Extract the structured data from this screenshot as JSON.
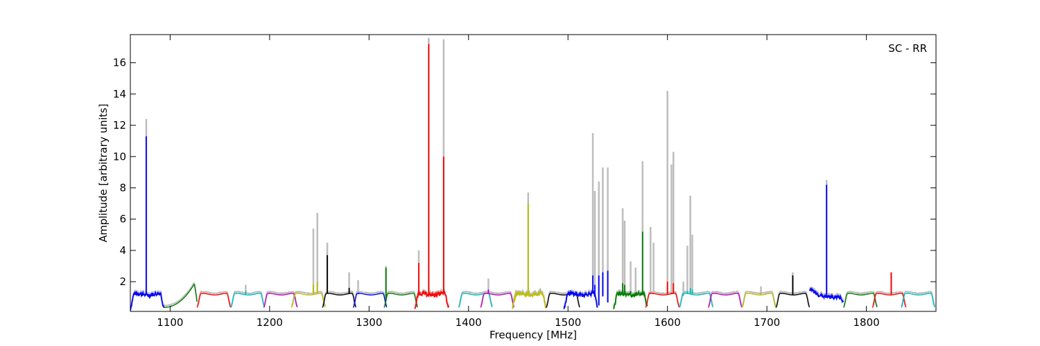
{
  "chart_data": {
    "type": "line",
    "title": "",
    "annotation": "SC - RR",
    "xlabel": "Frequency [MHz]",
    "ylabel": "Amplitude [arbitrary units]",
    "xlim": [
      1060,
      1870
    ],
    "ylim": [
      0.1,
      17.8
    ],
    "xticks": [
      1100,
      1200,
      1300,
      1400,
      1500,
      1600,
      1700,
      1800
    ],
    "yticks": [
      2,
      4,
      6,
      8,
      10,
      12,
      14,
      16
    ],
    "xtick_labels": [
      "1100",
      "1200",
      "1300",
      "1400",
      "1500",
      "1600",
      "1700",
      "1800"
    ],
    "ytick_labels": [
      "2",
      "4",
      "6",
      "8",
      "10",
      "12",
      "14",
      "16"
    ],
    "grid": false,
    "legend": "none",
    "background_trace_color": "#bdbdbd",
    "band_width": 34,
    "bands": [
      {
        "start": 1060,
        "color": "#0000ff",
        "spikes": [
          [
            1076,
            11.3,
            12.4
          ]
        ],
        "noise": true
      },
      {
        "start": 1093,
        "color": "#007f00",
        "spikes": [],
        "shape": "rising"
      },
      {
        "start": 1127,
        "color": "#ff0000",
        "spikes": []
      },
      {
        "start": 1161,
        "color": "#00bfbf",
        "spikes": [
          [
            1176,
            1.4,
            1.8
          ]
        ]
      },
      {
        "start": 1194,
        "color": "#bf00bf",
        "spikes": []
      },
      {
        "start": 1222,
        "color": "#bfbf00",
        "spikes": [
          [
            1244,
            1.8,
            5.4
          ],
          [
            1248,
            2.0,
            6.4
          ]
        ]
      },
      {
        "start": 1253,
        "color": "#000000",
        "spikes": [
          [
            1258,
            3.7,
            4.5
          ],
          [
            1280,
            1.6,
            2.6
          ]
        ]
      },
      {
        "start": 1284,
        "color": "#0000ff",
        "spikes": [
          [
            1289,
            1.2,
            2.1
          ]
        ]
      },
      {
        "start": 1315,
        "color": "#007f00",
        "spikes": [
          [
            1317,
            2.9,
            3.0
          ]
        ]
      },
      {
        "start": 1346,
        "color": "#ff0000",
        "spikes": [
          [
            1350,
            3.2,
            4.0
          ],
          [
            1360,
            17.2,
            17.6
          ],
          [
            1375,
            10.0,
            17.5
          ]
        ],
        "noise": true
      },
      {
        "start": 1390,
        "color": "#00bfbf",
        "spikes": []
      },
      {
        "start": 1412,
        "color": "#bf00bf",
        "spikes": [
          [
            1420,
            1.5,
            2.2
          ]
        ]
      },
      {
        "start": 1444,
        "color": "#bfbf00",
        "spikes": [
          [
            1460,
            7.0,
            7.7
          ]
        ],
        "noise": true
      },
      {
        "start": 1478,
        "color": "#000000",
        "spikes": []
      },
      {
        "start": 1496,
        "color": "#0000ff",
        "spikes": [
          [
            1525,
            2.4,
            11.5
          ],
          [
            1527,
            1.8,
            7.8
          ],
          [
            1531,
            2.4,
            8.4
          ],
          [
            1535,
            2.6,
            9.3
          ],
          [
            1540,
            2.7,
            9.3
          ]
        ],
        "noise": true
      },
      {
        "start": 1546,
        "color": "#007f00",
        "spikes": [
          [
            1555,
            1.9,
            6.7
          ],
          [
            1557,
            1.8,
            5.9
          ],
          [
            1563,
            1.4,
            3.3
          ],
          [
            1568,
            1.3,
            2.9
          ],
          [
            1575,
            5.2,
            9.7
          ]
        ],
        "noise": true
      },
      {
        "start": 1578,
        "color": "#ff0000",
        "spikes": [
          [
            1583,
            1.3,
            5.5
          ],
          [
            1586,
            1.2,
            4.5
          ],
          [
            1600,
            2.0,
            14.2
          ],
          [
            1604,
            1.3,
            9.5
          ],
          [
            1606,
            1.9,
            10.3
          ]
        ]
      },
      {
        "start": 1612,
        "color": "#00bfbf",
        "spikes": [
          [
            1616,
            1.1,
            2.0
          ],
          [
            1620,
            1.4,
            4.3
          ],
          [
            1623,
            1.6,
            7.5
          ],
          [
            1625,
            1.5,
            5.0
          ]
        ]
      },
      {
        "start": 1641,
        "color": "#bf00bf",
        "spikes": []
      },
      {
        "start": 1675,
        "color": "#bfbf00",
        "spikes": [
          [
            1694,
            1.3,
            1.7
          ]
        ]
      },
      {
        "start": 1709,
        "color": "#000000",
        "spikes": [
          [
            1726,
            2.4,
            2.6
          ]
        ]
      },
      {
        "start": 1743,
        "color": "#0000ff",
        "spikes": [
          [
            1760,
            8.2,
            8.5
          ]
        ],
        "shape": "falling",
        "noise": true
      },
      {
        "start": 1777,
        "color": "#007f00",
        "spikes": []
      },
      {
        "start": 1806,
        "color": "#ff0000",
        "spikes": [
          [
            1825,
            2.6,
            2.6
          ]
        ]
      },
      {
        "start": 1835,
        "color": "#00bfbf",
        "spikes": []
      }
    ]
  }
}
